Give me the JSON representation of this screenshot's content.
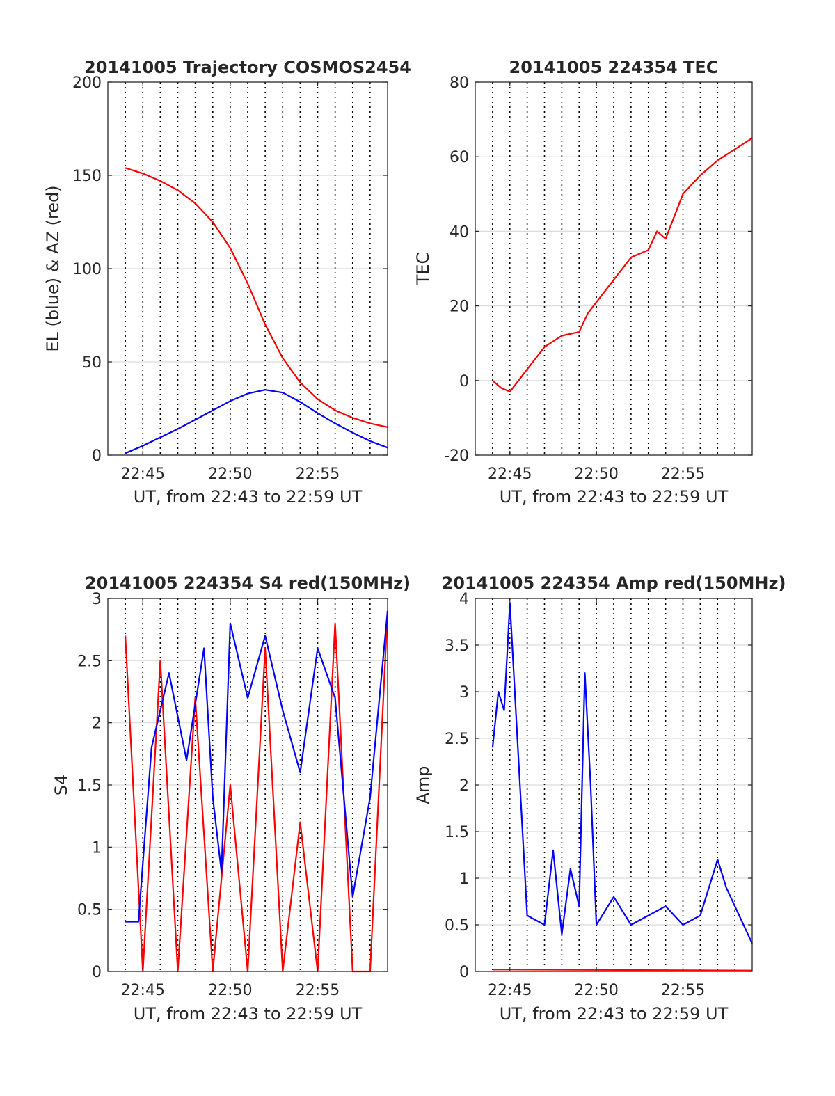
{
  "figure": {
    "background": "#ffffff",
    "colors": {
      "blue": "#0000ff",
      "red": "#ff0000",
      "axis": "#262626",
      "grid": "#dcdcdc",
      "vgrid": "#000000"
    }
  },
  "chart_data": [
    {
      "type": "line",
      "title": "20141005 Trajectory COSMOS2454",
      "xlabel": "UT, from 22:43 to 22:59 UT",
      "ylabel": "EL (blue) & AZ (red)",
      "xlim": [
        "22:43",
        "22:59"
      ],
      "ylim": [
        0,
        200
      ],
      "x_ticks": [
        "22:45",
        "22:50",
        "22:55"
      ],
      "y_ticks": [
        "0",
        "50",
        "100",
        "150",
        "200"
      ],
      "grid": "horizontal gridlines; dotted vertical lines every minute",
      "series": [
        {
          "color": "#ff0000",
          "x": [
            "22:44:00",
            "22:45:00",
            "22:46:00",
            "22:47:00",
            "22:48:00",
            "22:49:00",
            "22:50:00",
            "22:51:00",
            "22:52:00",
            "22:53:00",
            "22:54:00",
            "22:55:00",
            "22:56:00",
            "22:57:00",
            "22:58:00",
            "22:59:00"
          ],
          "y": [
            154,
            151,
            147,
            142,
            135,
            125,
            111,
            92,
            70,
            52,
            39,
            30,
            24,
            20,
            17,
            15
          ]
        },
        {
          "color": "#0000ff",
          "x": [
            "22:44:00",
            "22:45:00",
            "22:46:00",
            "22:47:00",
            "22:48:00",
            "22:49:00",
            "22:50:00",
            "22:51:00",
            "22:52:00",
            "22:53:00",
            "22:54:00",
            "22:55:00",
            "22:56:00",
            "22:57:00",
            "22:58:00",
            "22:59:00"
          ],
          "y": [
            1,
            5,
            9.5,
            14,
            19,
            24,
            29,
            33,
            35,
            33.5,
            28.5,
            22.5,
            17,
            12,
            7.5,
            4
          ]
        }
      ]
    },
    {
      "type": "line",
      "title": "20141005 224354 TEC",
      "xlabel": "UT, from 22:43 to 22:59 UT",
      "ylabel": "TEC",
      "xlim": [
        "22:43",
        "22:59"
      ],
      "ylim": [
        -20,
        80
      ],
      "x_ticks": [
        "22:45",
        "22:50",
        "22:55"
      ],
      "y_ticks": [
        "-20",
        "0",
        "20",
        "40",
        "60",
        "80"
      ],
      "grid": "horizontal gridlines; dotted vertical lines every minute",
      "series": [
        {
          "color": "#ff0000",
          "x": [
            "22:44:00",
            "22:44:30",
            "22:45:00",
            "22:46:00",
            "22:47:00",
            "22:48:00",
            "22:49:00",
            "22:49:30",
            "22:50:00",
            "22:51:00",
            "22:52:00",
            "22:53:00",
            "22:53:30",
            "22:54:00",
            "22:55:00",
            "22:56:00",
            "22:57:00",
            "22:58:00",
            "22:59:00"
          ],
          "y": [
            0,
            -2,
            -3,
            3,
            9,
            12,
            13,
            18,
            21,
            27,
            33,
            35,
            40,
            38,
            50,
            55,
            59,
            62,
            65
          ]
        }
      ]
    },
    {
      "type": "line",
      "title": "20141005 224354 S4 red(150MHz)",
      "xlabel": "UT, from 22:43 to 22:59 UT",
      "ylabel": "S4",
      "xlim": [
        "22:43",
        "22:59"
      ],
      "ylim": [
        0,
        3
      ],
      "x_ticks": [
        "22:45",
        "22:50",
        "22:55"
      ],
      "y_ticks": [
        "0",
        "0.5",
        "1",
        "1.5",
        "2",
        "2.5",
        "3"
      ],
      "grid": "horizontal gridlines; dotted vertical lines every minute",
      "series": [
        {
          "color": "#ff0000",
          "x": [
            "22:44:00",
            "22:45:00",
            "22:46:00",
            "22:47:00",
            "22:48:00",
            "22:49:00",
            "22:50:00",
            "22:51:00",
            "22:52:00",
            "22:53:00",
            "22:54:00",
            "22:55:00",
            "22:56:00",
            "22:57:00",
            "22:58:00",
            "22:59:00"
          ],
          "y": [
            2.7,
            0,
            2.5,
            0,
            2.2,
            0,
            1.5,
            0,
            2.6,
            0,
            1.2,
            0,
            2.8,
            0,
            0,
            2.9
          ]
        },
        {
          "color": "#0000ff",
          "x": [
            "22:44:00",
            "22:44:45",
            "22:45:30",
            "22:46:30",
            "22:47:30",
            "22:48:30",
            "22:49:00",
            "22:49:30",
            "22:50:00",
            "22:51:00",
            "22:52:00",
            "22:53:00",
            "22:54:00",
            "22:55:00",
            "22:56:00",
            "22:57:00",
            "22:58:00",
            "22:59:00"
          ],
          "y": [
            0.4,
            0.4,
            1.8,
            2.4,
            1.7,
            2.6,
            1.4,
            0.8,
            2.8,
            2.2,
            2.7,
            2.1,
            1.6,
            2.6,
            2.2,
            0.6,
            1.4,
            2.9
          ]
        }
      ]
    },
    {
      "type": "line",
      "title": "20141005 224354 Amp red(150MHz)",
      "xlabel": "UT, from 22:43 to 22:59 UT",
      "ylabel": "Amp",
      "xlim": [
        "22:43",
        "22:59"
      ],
      "ylim": [
        0,
        4
      ],
      "x_ticks": [
        "22:45",
        "22:50",
        "22:55"
      ],
      "y_ticks": [
        "0",
        "0.5",
        "1",
        "1.5",
        "2",
        "2.5",
        "3",
        "3.5",
        "4"
      ],
      "grid": "horizontal gridlines; dotted vertical lines every minute",
      "series": [
        {
          "color": "#ff0000",
          "x": [
            "22:44:00",
            "22:45:00",
            "22:59:00"
          ],
          "y": [
            0.02,
            0.02,
            0.01
          ]
        },
        {
          "color": "#0000ff",
          "x": [
            "22:44:00",
            "22:44:20",
            "22:44:40",
            "22:45:00",
            "22:46:00",
            "22:47:00",
            "22:47:30",
            "22:48:00",
            "22:48:30",
            "22:49:00",
            "22:49:20",
            "22:49:40",
            "22:50:00",
            "22:51:00",
            "22:52:00",
            "22:53:00",
            "22:54:00",
            "22:55:00",
            "22:56:00",
            "22:57:00",
            "22:57:30",
            "22:58:00",
            "22:59:00"
          ],
          "y": [
            2.4,
            3.0,
            2.8,
            3.95,
            0.6,
            0.5,
            1.3,
            0.4,
            1.1,
            0.7,
            3.2,
            2.0,
            0.5,
            0.8,
            0.5,
            0.6,
            0.7,
            0.5,
            0.6,
            1.2,
            0.9,
            0.7,
            0.3
          ]
        }
      ]
    }
  ]
}
